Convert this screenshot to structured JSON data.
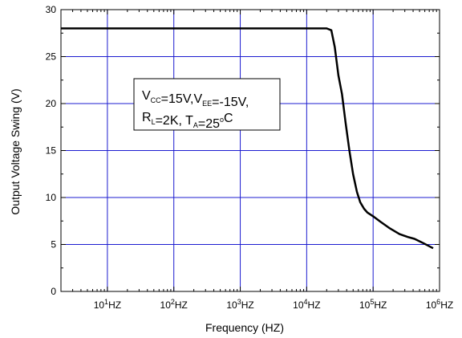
{
  "chart_data": {
    "type": "line",
    "xlabel": "Frequency (HZ)",
    "ylabel": "Output Voltage Swing (V)",
    "x_scale": "log",
    "xlim": [
      2,
      1000000
    ],
    "ylim": [
      0,
      30
    ],
    "grid": true,
    "x_ticks": [
      {
        "value": 10,
        "base": "10",
        "exp": "1",
        "unit": "HZ"
      },
      {
        "value": 100,
        "base": "10",
        "exp": "2",
        "unit": "HZ"
      },
      {
        "value": 1000,
        "base": "10",
        "exp": "3",
        "unit": "HZ"
      },
      {
        "value": 10000,
        "base": "10",
        "exp": "4",
        "unit": "HZ"
      },
      {
        "value": 100000,
        "base": "10",
        "exp": "5",
        "unit": "HZ"
      },
      {
        "value": 1000000,
        "base": "10",
        "exp": "6",
        "unit": "HZ"
      }
    ],
    "y_ticks": [
      0,
      5,
      10,
      15,
      20,
      25,
      30
    ],
    "series": [
      {
        "color": "#000000",
        "x": [
          2,
          10,
          100,
          1000,
          10000,
          20000,
          23500,
          26500,
          30000,
          34000,
          38500,
          44000,
          50000,
          57000,
          64000,
          73000,
          82000,
          100000,
          130000,
          180000,
          250000,
          330000,
          420000,
          550000,
          800000
        ],
        "y": [
          28,
          28,
          28,
          28,
          28,
          28,
          27.8,
          26,
          23,
          21,
          18,
          15,
          12.5,
          10.6,
          9.5,
          8.8,
          8.4,
          8,
          7.4,
          6.7,
          6.1,
          5.8,
          5.6,
          5.2,
          4.6
        ]
      }
    ],
    "annotation": {
      "line1": [
        {
          "t": "V",
          "sub": "CC"
        },
        {
          "t": "=15V,V",
          "sub": "EE"
        },
        {
          "t": "=-15V,"
        }
      ],
      "line2": [
        {
          "t": "R",
          "sub": "L"
        },
        {
          "t": "=2K, T",
          "sub": "A"
        },
        {
          "t": "=25"
        },
        {
          "t": "o",
          "sup": true
        },
        {
          "t": "C"
        }
      ]
    },
    "colors": {
      "grid": "#1c1cd0",
      "line": "#000000",
      "frame": "#000000"
    }
  }
}
